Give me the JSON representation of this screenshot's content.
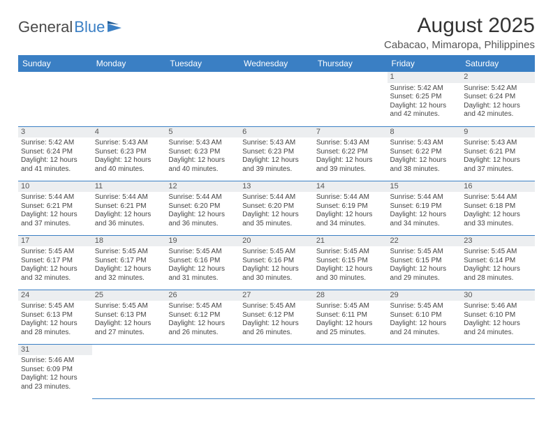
{
  "logo": {
    "text1": "General",
    "text2": "Blue"
  },
  "title": "August 2025",
  "subtitle": "Cabacao, Mimaropa, Philippines",
  "colors": {
    "header_bg": "#3a7fc4",
    "header_text": "#ffffff",
    "daybar_bg": "#eceef0",
    "cell_border": "#3a7fc4",
    "body_text": "#444444",
    "title_text": "#333333"
  },
  "headers": [
    "Sunday",
    "Monday",
    "Tuesday",
    "Wednesday",
    "Thursday",
    "Friday",
    "Saturday"
  ],
  "weeks": [
    [
      null,
      null,
      null,
      null,
      null,
      {
        "d": "1",
        "sr": "Sunrise: 5:42 AM",
        "ss": "Sunset: 6:25 PM",
        "dl1": "Daylight: 12 hours",
        "dl2": "and 42 minutes."
      },
      {
        "d": "2",
        "sr": "Sunrise: 5:42 AM",
        "ss": "Sunset: 6:24 PM",
        "dl1": "Daylight: 12 hours",
        "dl2": "and 42 minutes."
      }
    ],
    [
      {
        "d": "3",
        "sr": "Sunrise: 5:42 AM",
        "ss": "Sunset: 6:24 PM",
        "dl1": "Daylight: 12 hours",
        "dl2": "and 41 minutes."
      },
      {
        "d": "4",
        "sr": "Sunrise: 5:43 AM",
        "ss": "Sunset: 6:23 PM",
        "dl1": "Daylight: 12 hours",
        "dl2": "and 40 minutes."
      },
      {
        "d": "5",
        "sr": "Sunrise: 5:43 AM",
        "ss": "Sunset: 6:23 PM",
        "dl1": "Daylight: 12 hours",
        "dl2": "and 40 minutes."
      },
      {
        "d": "6",
        "sr": "Sunrise: 5:43 AM",
        "ss": "Sunset: 6:23 PM",
        "dl1": "Daylight: 12 hours",
        "dl2": "and 39 minutes."
      },
      {
        "d": "7",
        "sr": "Sunrise: 5:43 AM",
        "ss": "Sunset: 6:22 PM",
        "dl1": "Daylight: 12 hours",
        "dl2": "and 39 minutes."
      },
      {
        "d": "8",
        "sr": "Sunrise: 5:43 AM",
        "ss": "Sunset: 6:22 PM",
        "dl1": "Daylight: 12 hours",
        "dl2": "and 38 minutes."
      },
      {
        "d": "9",
        "sr": "Sunrise: 5:43 AM",
        "ss": "Sunset: 6:21 PM",
        "dl1": "Daylight: 12 hours",
        "dl2": "and 37 minutes."
      }
    ],
    [
      {
        "d": "10",
        "sr": "Sunrise: 5:44 AM",
        "ss": "Sunset: 6:21 PM",
        "dl1": "Daylight: 12 hours",
        "dl2": "and 37 minutes."
      },
      {
        "d": "11",
        "sr": "Sunrise: 5:44 AM",
        "ss": "Sunset: 6:21 PM",
        "dl1": "Daylight: 12 hours",
        "dl2": "and 36 minutes."
      },
      {
        "d": "12",
        "sr": "Sunrise: 5:44 AM",
        "ss": "Sunset: 6:20 PM",
        "dl1": "Daylight: 12 hours",
        "dl2": "and 36 minutes."
      },
      {
        "d": "13",
        "sr": "Sunrise: 5:44 AM",
        "ss": "Sunset: 6:20 PM",
        "dl1": "Daylight: 12 hours",
        "dl2": "and 35 minutes."
      },
      {
        "d": "14",
        "sr": "Sunrise: 5:44 AM",
        "ss": "Sunset: 6:19 PM",
        "dl1": "Daylight: 12 hours",
        "dl2": "and 34 minutes."
      },
      {
        "d": "15",
        "sr": "Sunrise: 5:44 AM",
        "ss": "Sunset: 6:19 PM",
        "dl1": "Daylight: 12 hours",
        "dl2": "and 34 minutes."
      },
      {
        "d": "16",
        "sr": "Sunrise: 5:44 AM",
        "ss": "Sunset: 6:18 PM",
        "dl1": "Daylight: 12 hours",
        "dl2": "and 33 minutes."
      }
    ],
    [
      {
        "d": "17",
        "sr": "Sunrise: 5:45 AM",
        "ss": "Sunset: 6:17 PM",
        "dl1": "Daylight: 12 hours",
        "dl2": "and 32 minutes."
      },
      {
        "d": "18",
        "sr": "Sunrise: 5:45 AM",
        "ss": "Sunset: 6:17 PM",
        "dl1": "Daylight: 12 hours",
        "dl2": "and 32 minutes."
      },
      {
        "d": "19",
        "sr": "Sunrise: 5:45 AM",
        "ss": "Sunset: 6:16 PM",
        "dl1": "Daylight: 12 hours",
        "dl2": "and 31 minutes."
      },
      {
        "d": "20",
        "sr": "Sunrise: 5:45 AM",
        "ss": "Sunset: 6:16 PM",
        "dl1": "Daylight: 12 hours",
        "dl2": "and 30 minutes."
      },
      {
        "d": "21",
        "sr": "Sunrise: 5:45 AM",
        "ss": "Sunset: 6:15 PM",
        "dl1": "Daylight: 12 hours",
        "dl2": "and 30 minutes."
      },
      {
        "d": "22",
        "sr": "Sunrise: 5:45 AM",
        "ss": "Sunset: 6:15 PM",
        "dl1": "Daylight: 12 hours",
        "dl2": "and 29 minutes."
      },
      {
        "d": "23",
        "sr": "Sunrise: 5:45 AM",
        "ss": "Sunset: 6:14 PM",
        "dl1": "Daylight: 12 hours",
        "dl2": "and 28 minutes."
      }
    ],
    [
      {
        "d": "24",
        "sr": "Sunrise: 5:45 AM",
        "ss": "Sunset: 6:13 PM",
        "dl1": "Daylight: 12 hours",
        "dl2": "and 28 minutes."
      },
      {
        "d": "25",
        "sr": "Sunrise: 5:45 AM",
        "ss": "Sunset: 6:13 PM",
        "dl1": "Daylight: 12 hours",
        "dl2": "and 27 minutes."
      },
      {
        "d": "26",
        "sr": "Sunrise: 5:45 AM",
        "ss": "Sunset: 6:12 PM",
        "dl1": "Daylight: 12 hours",
        "dl2": "and 26 minutes."
      },
      {
        "d": "27",
        "sr": "Sunrise: 5:45 AM",
        "ss": "Sunset: 6:12 PM",
        "dl1": "Daylight: 12 hours",
        "dl2": "and 26 minutes."
      },
      {
        "d": "28",
        "sr": "Sunrise: 5:45 AM",
        "ss": "Sunset: 6:11 PM",
        "dl1": "Daylight: 12 hours",
        "dl2": "and 25 minutes."
      },
      {
        "d": "29",
        "sr": "Sunrise: 5:45 AM",
        "ss": "Sunset: 6:10 PM",
        "dl1": "Daylight: 12 hours",
        "dl2": "and 24 minutes."
      },
      {
        "d": "30",
        "sr": "Sunrise: 5:46 AM",
        "ss": "Sunset: 6:10 PM",
        "dl1": "Daylight: 12 hours",
        "dl2": "and 24 minutes."
      }
    ],
    [
      {
        "d": "31",
        "sr": "Sunrise: 5:46 AM",
        "ss": "Sunset: 6:09 PM",
        "dl1": "Daylight: 12 hours",
        "dl2": "and 23 minutes."
      },
      null,
      null,
      null,
      null,
      null,
      null
    ]
  ]
}
